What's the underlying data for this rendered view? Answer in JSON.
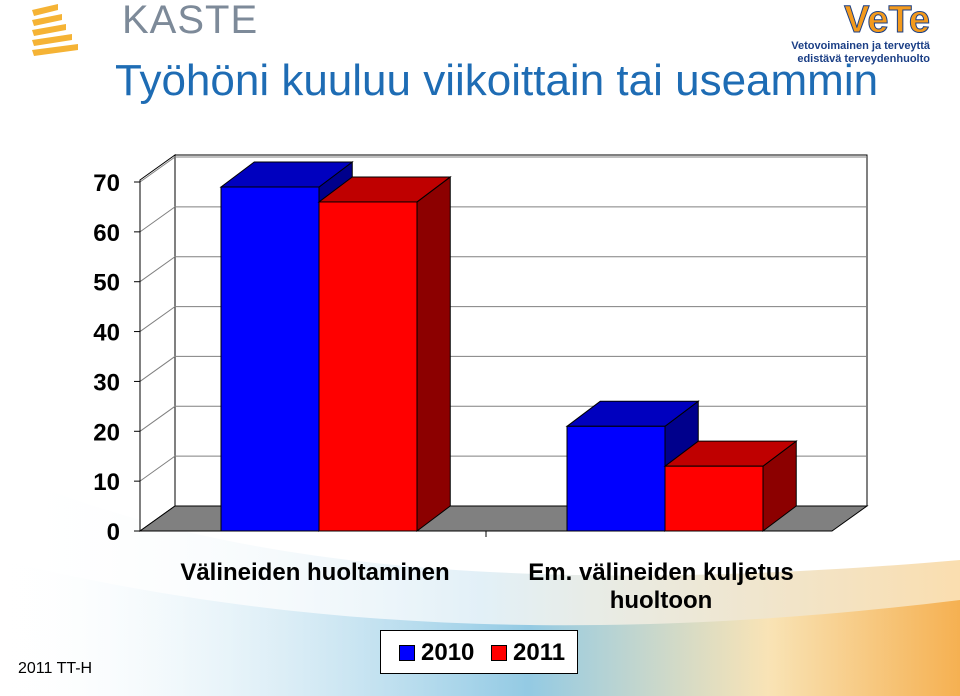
{
  "header": {
    "kaste_logo": "KASTE",
    "vete_logo": "VeTe",
    "vete_subtitle_1": "Vetovoimainen ja terveyttä",
    "vete_subtitle_2": "edistävä terveydenhuolto"
  },
  "title": "Työhöni kuuluu viikoittain tai useammin",
  "footer": "2011 TT-H",
  "chart_data": {
    "type": "bar",
    "categories": [
      "Välineiden huoltaminen",
      "Em. välineiden kuljetus huoltoon"
    ],
    "series": [
      {
        "name": "2010",
        "values": [
          69,
          21
        ],
        "color": "#0000ff"
      },
      {
        "name": "2011",
        "values": [
          66,
          13
        ],
        "color": "#ff0000"
      }
    ],
    "yticks": [
      0,
      10,
      20,
      30,
      40,
      50,
      60,
      70
    ],
    "ylim": [
      0,
      70
    ],
    "grid": true,
    "legend": "bottom"
  }
}
